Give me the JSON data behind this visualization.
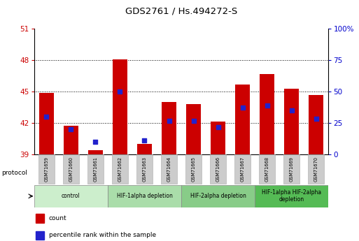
{
  "title": "GDS2761 / Hs.494272-S",
  "samples": [
    "GSM71659",
    "GSM71660",
    "GSM71661",
    "GSM71662",
    "GSM71663",
    "GSM71664",
    "GSM71665",
    "GSM71666",
    "GSM71667",
    "GSM71668",
    "GSM71669",
    "GSM71670"
  ],
  "bar_heights": [
    44.9,
    41.7,
    39.4,
    48.1,
    40.0,
    44.0,
    43.8,
    42.1,
    45.7,
    46.7,
    45.3,
    44.7
  ],
  "blue_positions": [
    42.6,
    41.4,
    40.2,
    45.0,
    40.3,
    42.2,
    42.2,
    41.6,
    43.5,
    43.7,
    43.2,
    42.4
  ],
  "bar_bottom": 39.0,
  "ylim_left": [
    39,
    51
  ],
  "yticks_left": [
    39,
    42,
    45,
    48,
    51
  ],
  "ylim_right": [
    0,
    100
  ],
  "yticks_right": [
    0,
    25,
    50,
    75,
    100
  ],
  "bar_color": "#cc0000",
  "blue_color": "#2222cc",
  "bar_width": 0.6,
  "blue_square_size": 18,
  "groups": [
    {
      "label": "control",
      "spans": [
        0,
        3
      ],
      "color": "#cceecc"
    },
    {
      "label": "HIF-1alpha depletion",
      "spans": [
        3,
        6
      ],
      "color": "#aaddaa"
    },
    {
      "label": "HIF-2alpha depletion",
      "spans": [
        6,
        9
      ],
      "color": "#88cc88"
    },
    {
      "label": "HIF-1alpha HIF-2alpha\ndepletion",
      "spans": [
        9,
        12
      ],
      "color": "#55bb55"
    }
  ],
  "tick_bg_color": "#cccccc",
  "protocol_label": "protocol",
  "legend_items": [
    {
      "label": "count",
      "color": "#cc0000"
    },
    {
      "label": "percentile rank within the sample",
      "color": "#2222cc"
    }
  ],
  "left_tick_color": "#cc0000",
  "right_tick_color": "#0000cc",
  "grid_color": "black",
  "grid_linestyle": ":"
}
